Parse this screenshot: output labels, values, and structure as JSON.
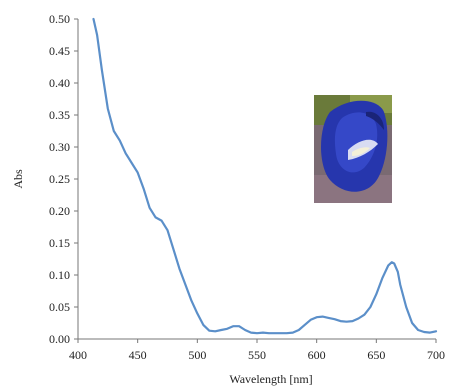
{
  "chart_data": {
    "type": "line",
    "xlabel": "Wavelength [nm]",
    "ylabel": "Abs",
    "xlim": [
      400,
      700
    ],
    "ylim": [
      0,
      0.5
    ],
    "xticks": [
      400,
      450,
      500,
      550,
      600,
      650,
      700
    ],
    "xtick_labels": [
      "400",
      "450",
      "500",
      "550",
      "600",
      "650",
      "700"
    ],
    "yticks": [
      0,
      0.05,
      0.1,
      0.15,
      0.2,
      0.25,
      0.3,
      0.35,
      0.4,
      0.45,
      0.5
    ],
    "ytick_labels": [
      "0.00",
      "0.05",
      "0.10",
      "0.15",
      "0.20",
      "0.25",
      "0.30",
      "0.35",
      "0.40",
      "0.45",
      "0.50"
    ],
    "grid": false,
    "series": [
      {
        "color": "#5b8fc9",
        "x": [
          413,
          416,
          420,
          425,
          430,
          435,
          440,
          445,
          450,
          455,
          460,
          465,
          470,
          475,
          480,
          485,
          490,
          495,
          500,
          505,
          510,
          515,
          520,
          525,
          530,
          535,
          540,
          545,
          550,
          555,
          560,
          565,
          570,
          575,
          580,
          585,
          590,
          595,
          600,
          605,
          610,
          615,
          620,
          625,
          630,
          635,
          640,
          645,
          650,
          655,
          660,
          663,
          665,
          668,
          670,
          675,
          680,
          685,
          690,
          695,
          700
        ],
        "y": [
          0.5,
          0.475,
          0.42,
          0.36,
          0.325,
          0.31,
          0.29,
          0.275,
          0.26,
          0.235,
          0.205,
          0.19,
          0.185,
          0.17,
          0.14,
          0.11,
          0.085,
          0.06,
          0.04,
          0.022,
          0.013,
          0.012,
          0.014,
          0.016,
          0.02,
          0.02,
          0.014,
          0.01,
          0.009,
          0.01,
          0.009,
          0.009,
          0.009,
          0.009,
          0.01,
          0.014,
          0.022,
          0.03,
          0.034,
          0.035,
          0.033,
          0.031,
          0.028,
          0.027,
          0.028,
          0.032,
          0.038,
          0.05,
          0.07,
          0.095,
          0.115,
          0.12,
          0.118,
          0.105,
          0.085,
          0.05,
          0.025,
          0.014,
          0.011,
          0.01,
          0.012
        ]
      }
    ]
  },
  "inset_image": {
    "subject": "blue flower photograph",
    "colors": [
      "#2f3fb6",
      "#1f2b8c",
      "#6d7d3c",
      "#9a7a86"
    ]
  }
}
